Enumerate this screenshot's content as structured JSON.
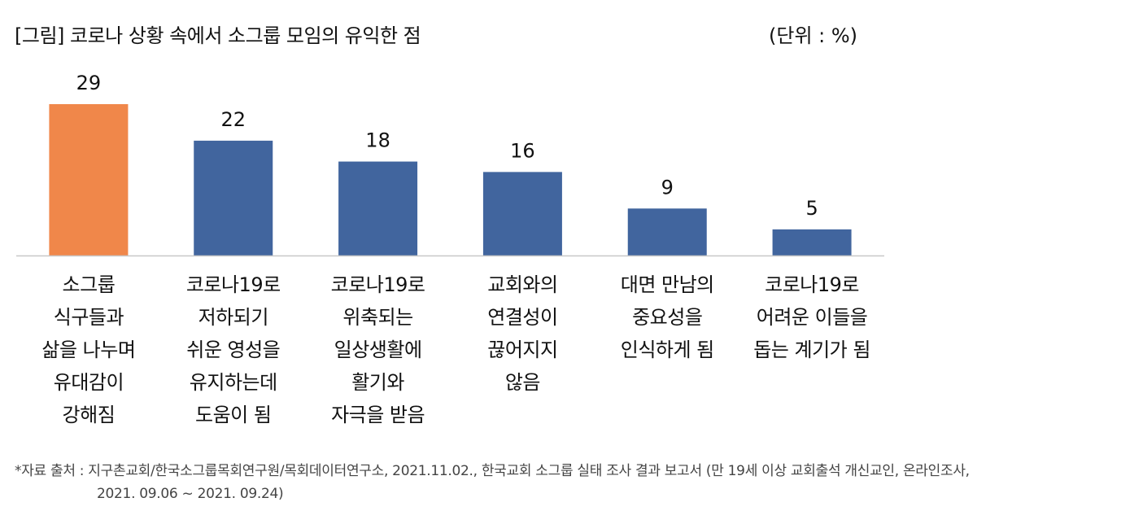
{
  "header": {
    "title": "[그림] 코로나 상황 속에서 소그룹 모임의 유익한 점",
    "unit": "(단위 : %)"
  },
  "chart_data": {
    "type": "bar",
    "categories": [
      "소그룹\n식구들과\n삶을 나누며\n유대감이\n강해짐",
      "코로나19로\n저하되기\n쉬운 영성을\n유지하는데\n도움이 됨",
      "코로나19로\n위축되는\n일상생활에\n활기와\n자극을 받음",
      "교회와의\n연결성이\n끊어지지\n않음",
      "대면 만남의\n중요성을\n인식하게 됨",
      "코로나19로\n어려운 이들을\n돕는 계기가 됨"
    ],
    "values": [
      29,
      22,
      18,
      16,
      9,
      5
    ],
    "value_labels": [
      "29",
      "22",
      "18",
      "16",
      "9",
      "5"
    ],
    "colors": [
      "#F0874A",
      "#41659E",
      "#41659E",
      "#41659E",
      "#41659E",
      "#41659E"
    ],
    "ylim": [
      0,
      29
    ],
    "grid": false,
    "legend": "none"
  },
  "footer": {
    "source_line1": "*자료 출처 : 지구촌교회/한국소그룹목회연구원/목회데이터연구소, 2021.11.02., 한국교회 소그룹 실태 조사 결과 보고서 (만 19세 이상 교회출석 개신교인, 온라인조사,",
    "source_line2": "2021. 09.06 ~ 2021. 09.24)"
  }
}
